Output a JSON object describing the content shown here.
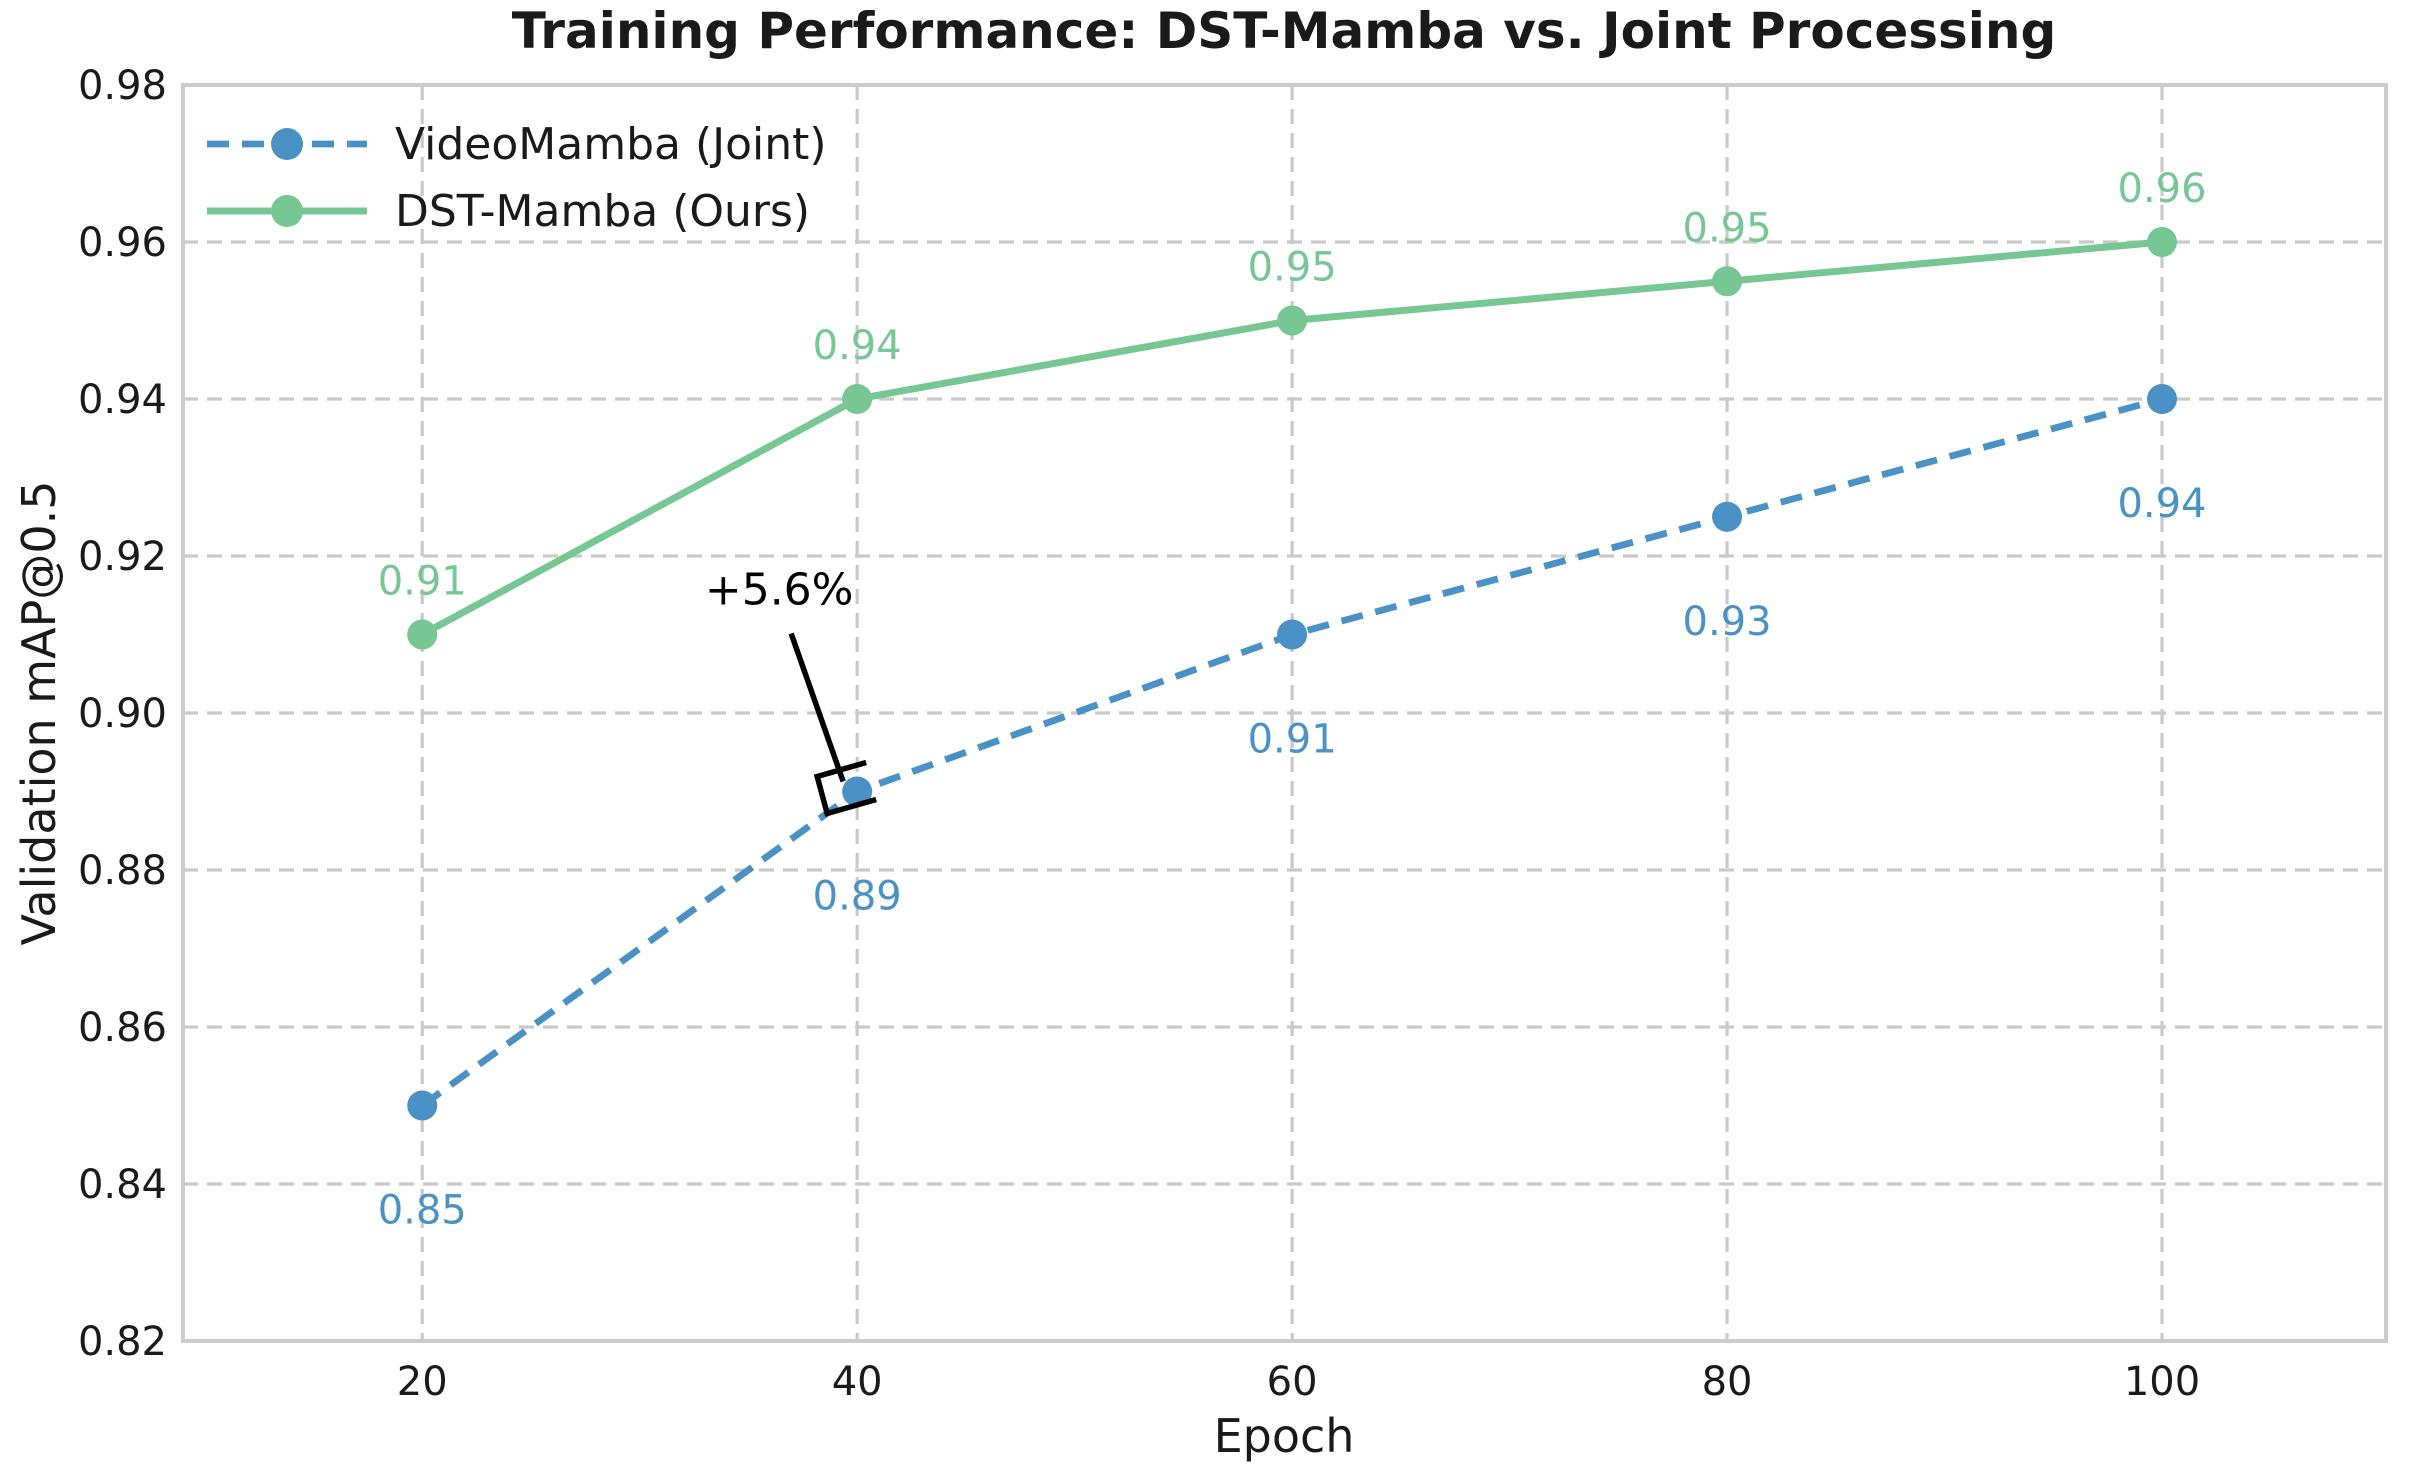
{
  "chart_data": {
    "type": "line",
    "title": "Training Performance: DST-Mamba vs. Joint Processing",
    "xlabel": "Epoch",
    "ylabel": "Validation mAP@0.5",
    "x": [
      20,
      40,
      60,
      80,
      100
    ],
    "xtick_labels": [
      "20",
      "40",
      "60",
      "80",
      "100"
    ],
    "ytick_values": [
      0.82,
      0.84,
      0.86,
      0.88,
      0.9,
      0.92,
      0.94,
      0.96,
      0.98
    ],
    "ytick_labels": [
      "0.82",
      "0.84",
      "0.86",
      "0.88",
      "0.90",
      "0.92",
      "0.94",
      "0.96",
      "0.98"
    ],
    "xlim": [
      9,
      110.3
    ],
    "ylim": [
      0.82,
      0.98
    ],
    "grid": true,
    "grid_style": "dashed",
    "legend_position": "upper-left",
    "legend_frame": false,
    "series": [
      {
        "name": "VideoMamba (Joint)",
        "color": "#4A91C5",
        "line_style": "dashed",
        "marker": "circle",
        "values": [
          0.85,
          0.89,
          0.91,
          0.925,
          0.94
        ],
        "point_labels": [
          "0.85",
          "0.89",
          "0.91",
          "0.93",
          "0.94"
        ],
        "label_side": "below"
      },
      {
        "name": "DST-Mamba (Ours)",
        "color": "#76C793",
        "line_style": "solid",
        "marker": "circle",
        "values": [
          0.91,
          0.94,
          0.95,
          0.955,
          0.96
        ],
        "point_labels": [
          "0.91",
          "0.94",
          "0.95",
          "0.95",
          "0.96"
        ],
        "label_side": "above"
      }
    ],
    "annotation": {
      "text": "+5.6%",
      "target_x": 40,
      "target_y": 0.89,
      "arrow_style": "bracket"
    }
  },
  "colors": {
    "grid": "#c9c9c9",
    "spine": "#cccccc",
    "text": "#1a1a1a",
    "annotation": "#000000",
    "background": "#ffffff"
  }
}
